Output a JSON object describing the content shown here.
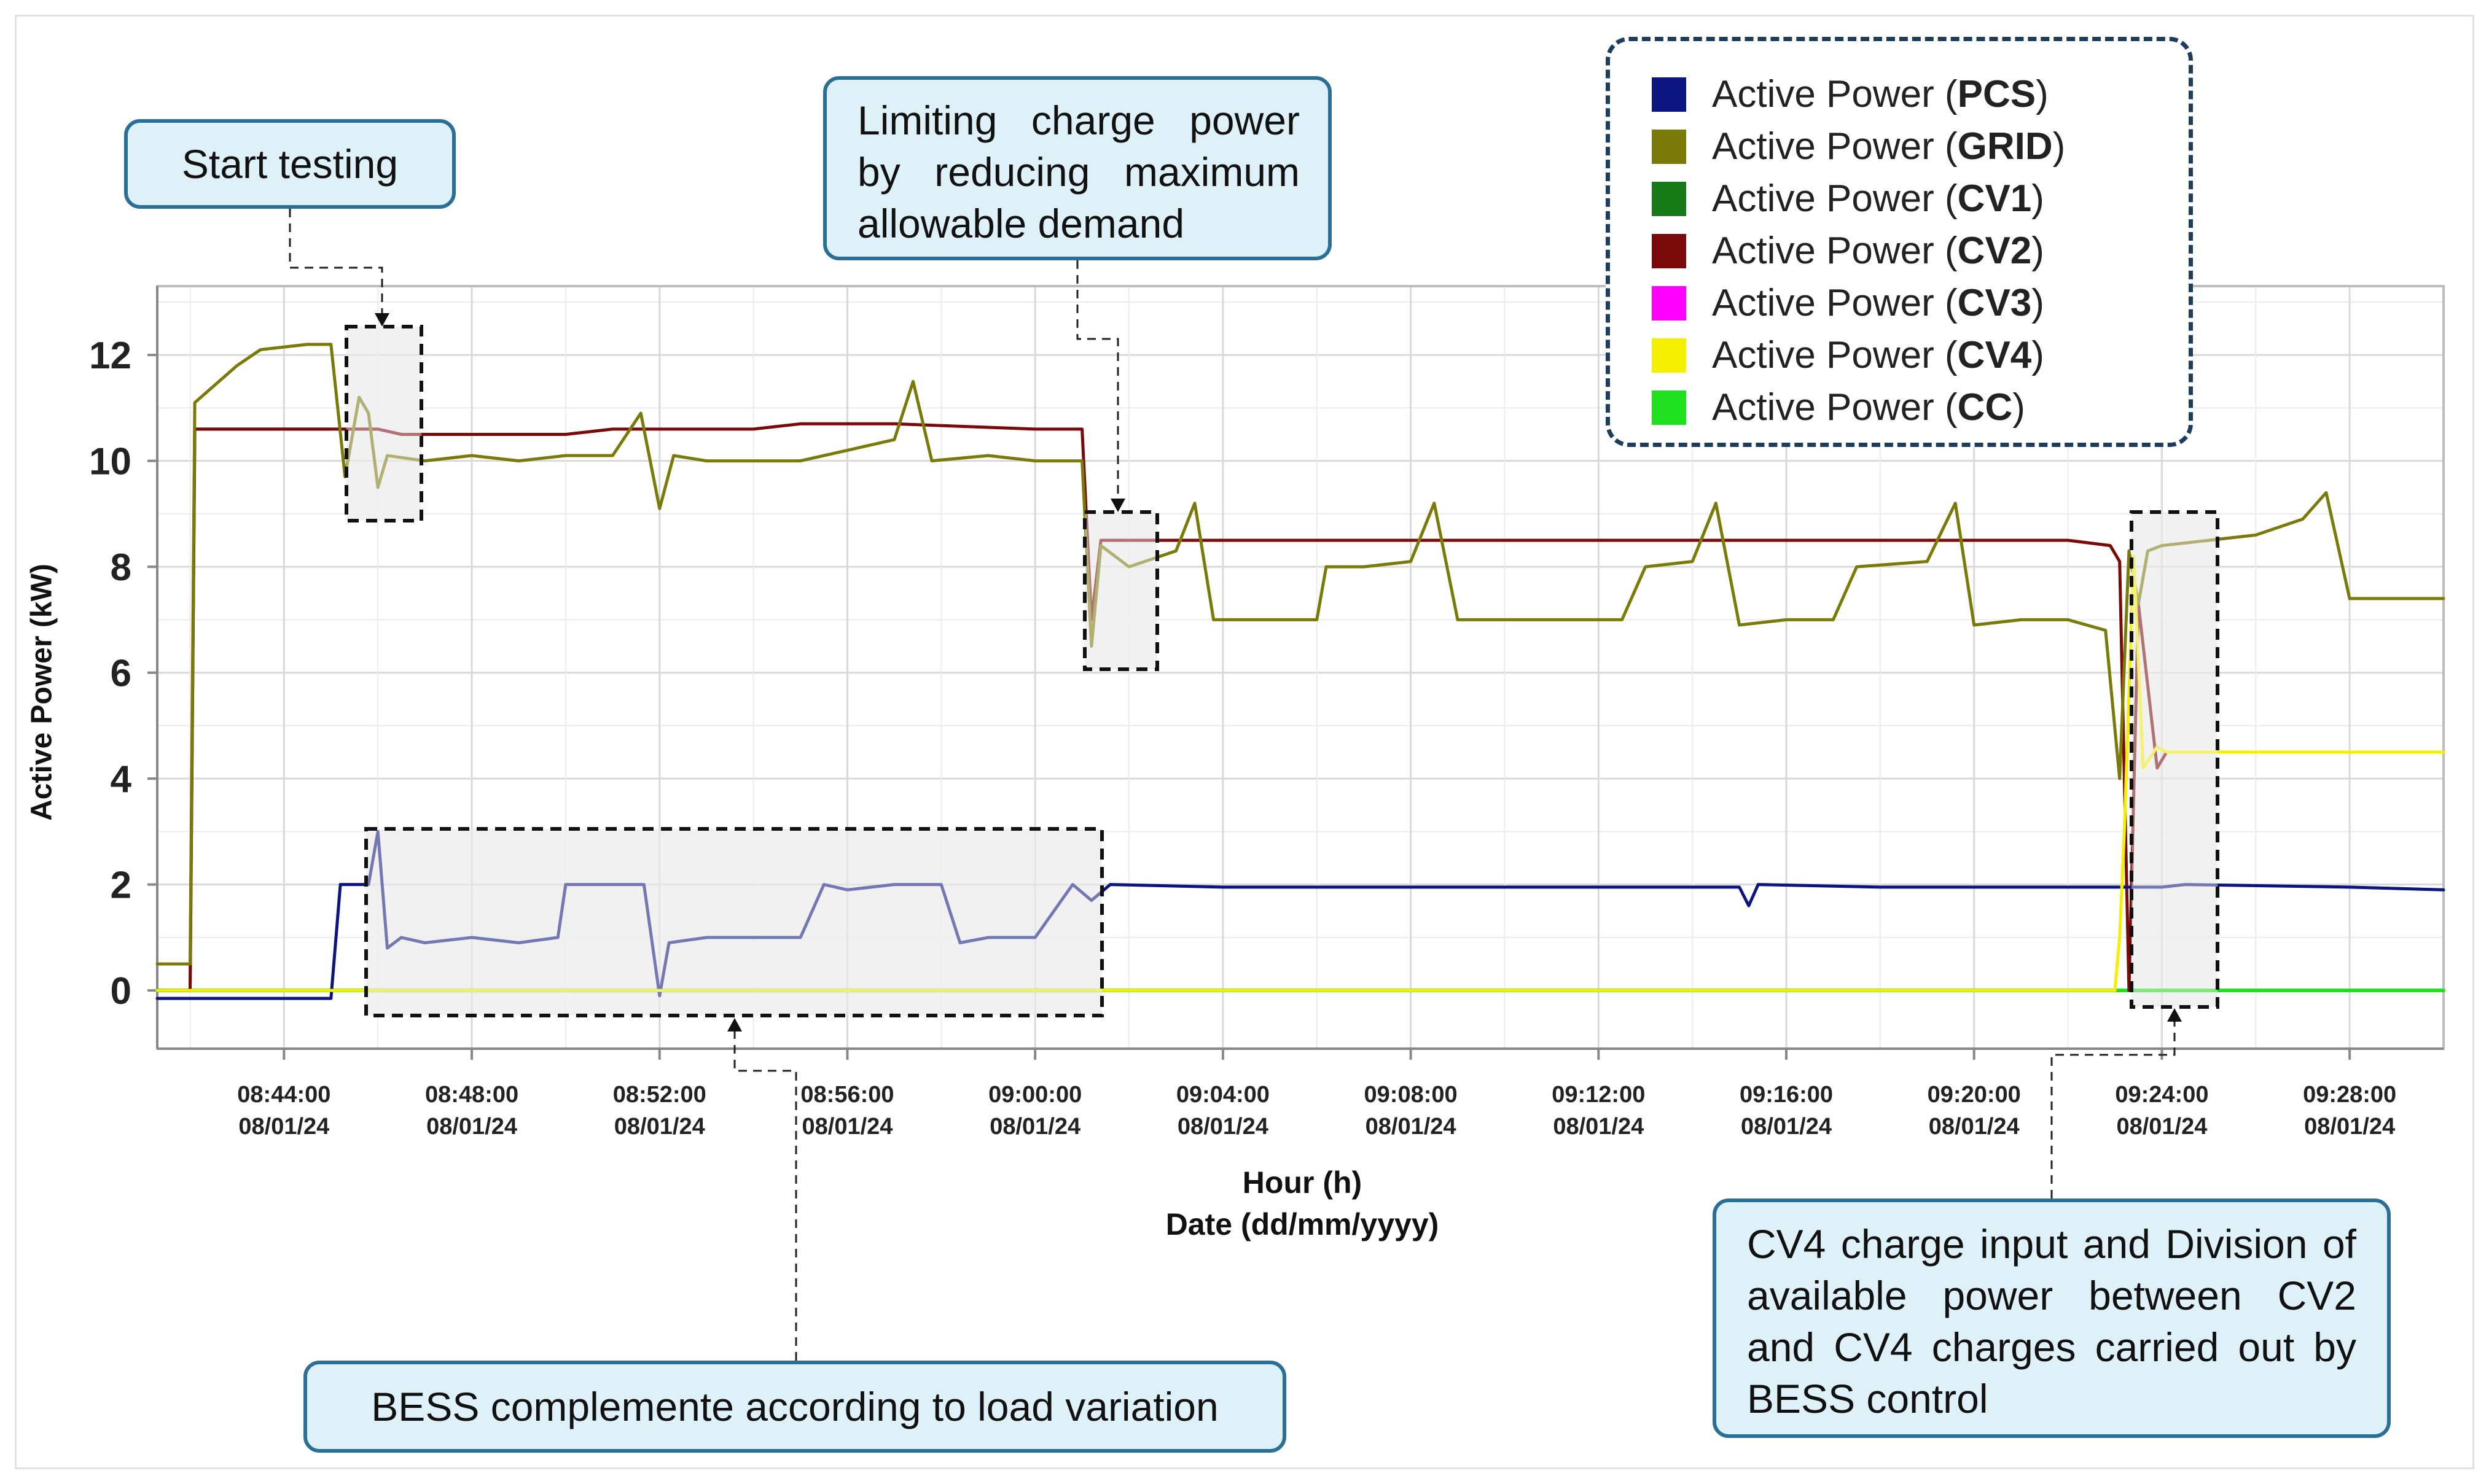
{
  "chart_data": {
    "type": "line",
    "xlabel": "Hour (h)",
    "xlabel_line2": "Date (dd/mm/yyyy)",
    "ylabel": "Active Power (kW)",
    "ylim": [
      -1.1,
      13.3
    ],
    "xlim": [
      "08:41:18",
      "09:30:00"
    ],
    "y_ticks": [
      "0",
      "2",
      "4",
      "6",
      "8",
      "10",
      "12"
    ],
    "x_ticks": [
      {
        "time": "08:44:00",
        "date": "08/01/24"
      },
      {
        "time": "08:48:00",
        "date": "08/01/24"
      },
      {
        "time": "08:52:00",
        "date": "08/01/24"
      },
      {
        "time": "08:56:00",
        "date": "08/01/24"
      },
      {
        "time": "09:00:00",
        "date": "08/01/24"
      },
      {
        "time": "09:04:00",
        "date": "08/01/24"
      },
      {
        "time": "09:08:00",
        "date": "08/01/24"
      },
      {
        "time": "09:12:00",
        "date": "08/01/24"
      },
      {
        "time": "09:16:00",
        "date": "08/01/24"
      },
      {
        "time": "09:20:00",
        "date": "08/01/24"
      },
      {
        "time": "09:24:00",
        "date": "08/01/24"
      },
      {
        "time": "09:28:00",
        "date": "08/01/24"
      }
    ],
    "grid": true,
    "legend_position": "top-right",
    "series": [
      {
        "name": "PCS",
        "color": "#0c1480",
        "points": [
          [
            "08:41:18",
            -0.15
          ],
          [
            "08:45:00",
            -0.15
          ],
          [
            "08:45:12",
            2.0
          ],
          [
            "08:45:48",
            2.0
          ],
          [
            "08:46:00",
            3.0
          ],
          [
            "08:46:12",
            0.8
          ],
          [
            "08:46:30",
            1.0
          ],
          [
            "08:47:00",
            0.9
          ],
          [
            "08:48:00",
            1.0
          ],
          [
            "08:49:00",
            0.9
          ],
          [
            "08:49:50",
            1.0
          ],
          [
            "08:50:00",
            2.0
          ],
          [
            "08:51:00",
            2.0
          ],
          [
            "08:51:40",
            2.0
          ],
          [
            "08:52:00",
            -0.1
          ],
          [
            "08:52:12",
            0.9
          ],
          [
            "08:53:00",
            1.0
          ],
          [
            "08:54:00",
            1.0
          ],
          [
            "08:55:00",
            1.0
          ],
          [
            "08:55:30",
            2.0
          ],
          [
            "08:56:00",
            1.9
          ],
          [
            "08:57:00",
            2.0
          ],
          [
            "08:58:00",
            2.0
          ],
          [
            "08:58:24",
            0.9
          ],
          [
            "08:59:00",
            1.0
          ],
          [
            "09:00:00",
            1.0
          ],
          [
            "09:00:48",
            2.0
          ],
          [
            "09:01:12",
            1.7
          ],
          [
            "09:01:36",
            2.0
          ],
          [
            "09:04:00",
            1.95
          ],
          [
            "09:08:00",
            1.95
          ],
          [
            "09:12:00",
            1.95
          ],
          [
            "09:15:00",
            1.95
          ],
          [
            "09:15:12",
            1.6
          ],
          [
            "09:15:24",
            2.0
          ],
          [
            "09:18:00",
            1.95
          ],
          [
            "09:22:00",
            1.95
          ],
          [
            "09:24:00",
            1.95
          ],
          [
            "09:24:30",
            2.0
          ],
          [
            "09:28:00",
            1.95
          ],
          [
            "09:30:00",
            1.9
          ]
        ]
      },
      {
        "name": "GRID",
        "color": "#7a7a08",
        "points": [
          [
            "08:41:18",
            0.5
          ],
          [
            "08:42:00",
            0.5
          ],
          [
            "08:42:06",
            11.1
          ],
          [
            "08:43:00",
            11.8
          ],
          [
            "08:43:30",
            12.1
          ],
          [
            "08:44:30",
            12.2
          ],
          [
            "08:45:00",
            12.2
          ],
          [
            "08:45:18",
            9.7
          ],
          [
            "08:45:36",
            11.2
          ],
          [
            "08:45:48",
            10.9
          ],
          [
            "08:46:00",
            9.5
          ],
          [
            "08:46:12",
            10.1
          ],
          [
            "08:47:00",
            10.0
          ],
          [
            "08:48:00",
            10.1
          ],
          [
            "08:49:00",
            10.0
          ],
          [
            "08:50:00",
            10.1
          ],
          [
            "08:51:00",
            10.1
          ],
          [
            "08:51:36",
            10.9
          ],
          [
            "08:52:00",
            9.1
          ],
          [
            "08:52:18",
            10.1
          ],
          [
            "08:53:00",
            10.0
          ],
          [
            "08:55:00",
            10.0
          ],
          [
            "08:56:00",
            10.2
          ],
          [
            "08:57:00",
            10.4
          ],
          [
            "08:57:24",
            11.5
          ],
          [
            "08:57:48",
            10.0
          ],
          [
            "08:59:00",
            10.1
          ],
          [
            "09:00:00",
            10.0
          ],
          [
            "09:01:00",
            10.0
          ],
          [
            "09:01:12",
            6.5
          ],
          [
            "09:01:24",
            8.4
          ],
          [
            "09:02:00",
            8.0
          ],
          [
            "09:03:00",
            8.3
          ],
          [
            "09:03:24",
            9.2
          ],
          [
            "09:03:48",
            7.0
          ],
          [
            "09:05:00",
            7.0
          ],
          [
            "09:06:00",
            7.0
          ],
          [
            "09:06:12",
            8.0
          ],
          [
            "09:07:00",
            8.0
          ],
          [
            "09:08:00",
            8.1
          ],
          [
            "09:08:30",
            9.2
          ],
          [
            "09:09:00",
            7.0
          ],
          [
            "09:10:00",
            7.0
          ],
          [
            "09:11:00",
            7.0
          ],
          [
            "09:12:30",
            7.0
          ],
          [
            "09:13:00",
            8.0
          ],
          [
            "09:14:00",
            8.1
          ],
          [
            "09:14:30",
            9.2
          ],
          [
            "09:15:00",
            6.9
          ],
          [
            "09:16:00",
            7.0
          ],
          [
            "09:17:00",
            7.0
          ],
          [
            "09:17:30",
            8.0
          ],
          [
            "09:19:00",
            8.1
          ],
          [
            "09:19:36",
            9.2
          ],
          [
            "09:20:00",
            6.9
          ],
          [
            "09:21:00",
            7.0
          ],
          [
            "09:22:00",
            7.0
          ],
          [
            "09:22:48",
            6.8
          ],
          [
            "09:23:06",
            4.0
          ],
          [
            "09:23:18",
            8.3
          ],
          [
            "09:23:30",
            7.3
          ],
          [
            "09:23:42",
            8.3
          ],
          [
            "09:24:00",
            8.4
          ],
          [
            "09:25:00",
            8.5
          ],
          [
            "09:26:00",
            8.6
          ],
          [
            "09:27:00",
            8.9
          ],
          [
            "09:27:30",
            9.4
          ],
          [
            "09:28:00",
            7.4
          ],
          [
            "09:29:00",
            7.4
          ],
          [
            "09:30:00",
            7.4
          ]
        ]
      },
      {
        "name": "CV1",
        "color": "#177a17",
        "points": [
          [
            "08:41:18",
            0.0
          ],
          [
            "08:42:00",
            0.0
          ],
          [
            "08:42:06",
            10.6
          ],
          [
            "08:45:00",
            10.6
          ]
        ]
      },
      {
        "name": "CV2",
        "color": "#7a0a0a",
        "points": [
          [
            "08:41:18",
            0.0
          ],
          [
            "08:42:00",
            0.0
          ],
          [
            "08:42:06",
            10.6
          ],
          [
            "08:46:00",
            10.6
          ],
          [
            "08:46:30",
            10.5
          ],
          [
            "08:50:00",
            10.5
          ],
          [
            "08:51:00",
            10.6
          ],
          [
            "08:54:00",
            10.6
          ],
          [
            "08:55:00",
            10.7
          ],
          [
            "08:57:00",
            10.7
          ],
          [
            "09:00:00",
            10.6
          ],
          [
            "09:01:00",
            10.6
          ],
          [
            "09:01:12",
            7.0
          ],
          [
            "09:01:24",
            8.5
          ],
          [
            "09:06:00",
            8.5
          ],
          [
            "09:10:00",
            8.5
          ],
          [
            "09:14:00",
            8.5
          ],
          [
            "09:18:00",
            8.5
          ],
          [
            "09:22:00",
            8.5
          ],
          [
            "09:22:54",
            8.4
          ],
          [
            "09:23:06",
            8.1
          ],
          [
            "09:23:18",
            0.0
          ],
          [
            "09:23:30",
            7.3
          ],
          [
            "09:23:54",
            4.2
          ],
          [
            "09:24:06",
            4.5
          ],
          [
            "09:30:00",
            4.5
          ]
        ]
      },
      {
        "name": "CV3",
        "color": "#ff00ff",
        "points": []
      },
      {
        "name": "CV4",
        "color": "#f5f000",
        "points": [
          [
            "08:41:18",
            0.0
          ],
          [
            "09:23:00",
            0.0
          ],
          [
            "09:23:06",
            1.0
          ],
          [
            "09:23:12",
            3.0
          ],
          [
            "09:23:24",
            8.2
          ],
          [
            "09:23:36",
            4.2
          ],
          [
            "09:23:54",
            4.6
          ],
          [
            "09:24:06",
            4.5
          ],
          [
            "09:30:00",
            4.5
          ]
        ]
      },
      {
        "name": "CC",
        "color": "#1ee01e",
        "points": [
          [
            "08:41:18",
            0.0
          ],
          [
            "09:30:00",
            0.0
          ]
        ]
      }
    ]
  },
  "legend": [
    {
      "prefix": "Active Power (",
      "name": "PCS",
      "suffix": ")",
      "color": "#0c1480"
    },
    {
      "prefix": "Active Power (",
      "name": "GRID",
      "suffix": ")",
      "color": "#7a7a08"
    },
    {
      "prefix": "Active Power (",
      "name": "CV1",
      "suffix": ")",
      "color": "#177a17"
    },
    {
      "prefix": "Active Power (",
      "name": "CV2",
      "suffix": ")",
      "color": "#7a0a0a"
    },
    {
      "prefix": "Active Power (",
      "name": "CV3",
      "suffix": ")",
      "color": "#ff00ff"
    },
    {
      "prefix": "Active Power (",
      "name": "CV4",
      "suffix": ")",
      "color": "#f5f000"
    },
    {
      "prefix": "Active Power (",
      "name": "CC",
      "suffix": ")",
      "color": "#1ee01e"
    }
  ],
  "annotations": {
    "start_testing": "Start testing",
    "limiting_charge": "Limiting charge power by reducing maximum allowable demand",
    "bess_complemente": "BESS complemente according to load variation",
    "cv4_charge": "CV4 charge input and Division of available power between CV2 and CV4 charges carried out by BESS control"
  },
  "colors": {
    "callout_fill": "#dff1f8",
    "callout_border": "#2b6f96",
    "highlight_fill": "#ebebeb",
    "grid": "#d9d9d9"
  }
}
